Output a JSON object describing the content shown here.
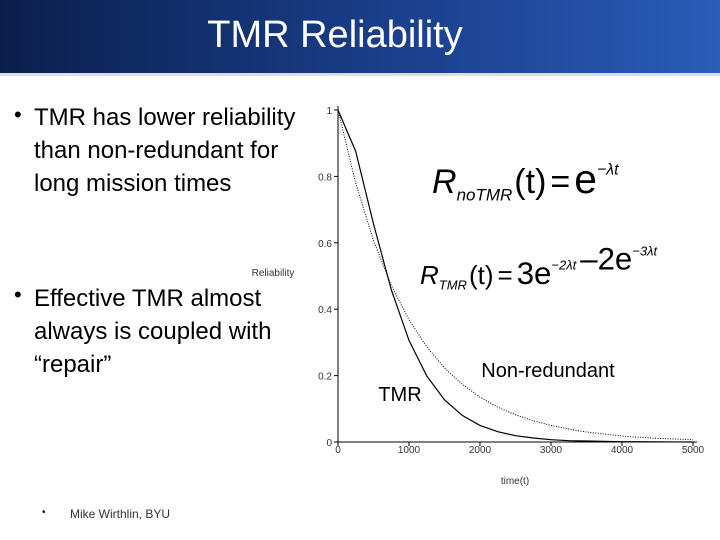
{
  "slide": {
    "title": "TMR Reliability",
    "bullets": [
      "TMR has lower reliability than non-redundant for long mission times",
      "Effective TMR almost always is coupled with “repair”"
    ],
    "footer_bullet": "•",
    "footer": "Mike Wirthlin, BYU",
    "equations": [
      {
        "r": "R",
        "sub": "noTMR",
        "arg": "(t)",
        "eq": "=",
        "terms": [
          {
            "base": "e",
            "exp": "−λt"
          }
        ]
      },
      {
        "r": "R",
        "sub": "TMR",
        "arg": "(t)",
        "eq": "=",
        "terms": [
          {
            "base": "3e",
            "exp": "−2λt"
          },
          {
            "base": "–2e",
            "exp": "−3λt"
          }
        ]
      }
    ]
  },
  "chart_data": {
    "type": "line",
    "y_label": "Reliability",
    "x_label": "time(t)",
    "x": [
      0,
      250,
      500,
      750,
      1000,
      1250,
      1500,
      1750,
      2000,
      2250,
      2500,
      2750,
      3000,
      3250,
      3500,
      3750,
      4000,
      4250,
      4500,
      4750,
      5000
    ],
    "series": [
      {
        "name": "TMR",
        "color": "#000000",
        "line_style": "solid",
        "values": [
          1,
          0.875,
          0.657,
          0.459,
          0.306,
          0.199,
          0.127,
          0.08,
          0.05,
          0.031,
          0.019,
          0.012,
          0.007,
          0.004,
          0.003,
          0.002,
          0.001,
          0.001,
          0.0004,
          0.0002,
          0.0001
        ]
      },
      {
        "name": "Non-redundant",
        "color": "#000000",
        "line_style": "dotted",
        "values": [
          1,
          0.779,
          0.607,
          0.472,
          0.368,
          0.287,
          0.223,
          0.174,
          0.135,
          0.105,
          0.082,
          0.064,
          0.05,
          0.039,
          0.03,
          0.024,
          0.018,
          0.014,
          0.011,
          0.009,
          0.007
        ]
      }
    ],
    "xlim": [
      0,
      5000
    ],
    "xticks": [
      0,
      1000,
      2000,
      3000,
      4000,
      5000
    ],
    "ylim": [
      0,
      1
    ],
    "yticks": [
      0,
      0.2,
      0.4,
      0.6,
      0.8,
      1
    ],
    "grid": false
  }
}
